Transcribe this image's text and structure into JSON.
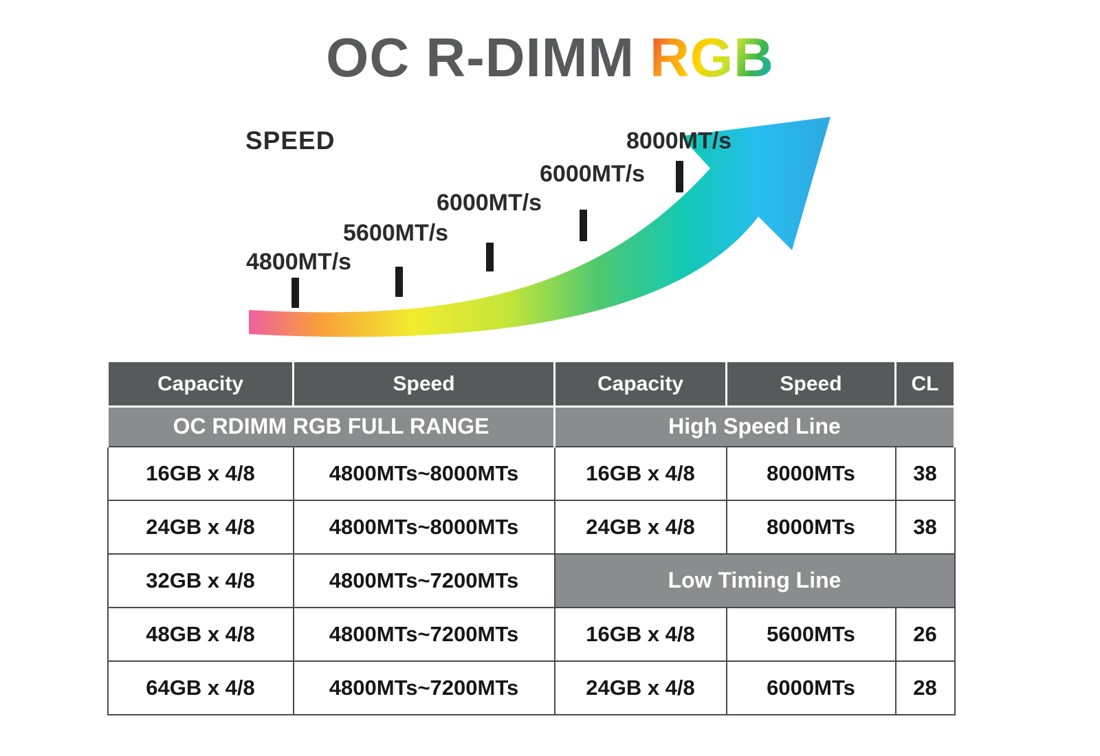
{
  "title": {
    "main": "OC R-DIMM",
    "accent": "RGB"
  },
  "colors": {
    "title_gray": "#58595b",
    "table_header_bg": "#57595b",
    "table_section_bg": "#8a8c8e",
    "text_dark": "#1b1b1d",
    "arrow_head_blue": "#2fb9ec"
  },
  "speed_chart": {
    "axis_label": "SPEED",
    "milestones": [
      {
        "label": "4800MT/s"
      },
      {
        "label": "5600MT/s"
      },
      {
        "label": "6000MT/s"
      },
      {
        "label": "6000MT/s"
      },
      {
        "label": "8000MT/s"
      }
    ]
  },
  "chart_data": {
    "type": "line",
    "title": "SPEED",
    "x_labels": [
      "4800MT/s",
      "5600MT/s",
      "6000MT/s",
      "6000MT/s",
      "8000MT/s"
    ],
    "values": [
      4800,
      5600,
      6000,
      6000,
      8000
    ],
    "style": "upward-curving swoosh arrow with rainbow gradient (pink to yellow to green to cyan), a black tick mark beneath each speed milestone label",
    "legend": "none",
    "grid": false,
    "gradient_stops": [
      {
        "offset": "0%",
        "color": "#f0609e"
      },
      {
        "offset": "12%",
        "color": "#f99e3c"
      },
      {
        "offset": "28%",
        "color": "#f3eb2f"
      },
      {
        "offset": "45%",
        "color": "#c3e53a"
      },
      {
        "offset": "60%",
        "color": "#4ec96f"
      },
      {
        "offset": "75%",
        "color": "#12c9b4"
      },
      {
        "offset": "88%",
        "color": "#27bdee"
      },
      {
        "offset": "100%",
        "color": "#2fa8e1"
      }
    ]
  },
  "table": {
    "headers": [
      "Capacity",
      "Speed",
      "Capacity",
      "Speed",
      "CL"
    ],
    "left_section_title": "OC RDIMM RGB FULL RANGE",
    "right_section_title": "High Speed Line",
    "low_timing_title": "Low Timing Line",
    "left_rows": [
      {
        "capacity": "16GB x 4/8",
        "speed": "4800MTs~8000MTs"
      },
      {
        "capacity": "24GB x 4/8",
        "speed": "4800MTs~8000MTs"
      },
      {
        "capacity": "32GB x 4/8",
        "speed": "4800MTs~7200MTs"
      },
      {
        "capacity": "48GB x 4/8",
        "speed": "4800MTs~7200MTs"
      },
      {
        "capacity": "64GB x 4/8",
        "speed": "4800MTs~7200MTs"
      }
    ],
    "high_speed_rows": [
      {
        "capacity": "16GB x 4/8",
        "speed": "8000MTs",
        "cl": "38"
      },
      {
        "capacity": "24GB x 4/8",
        "speed": "8000MTs",
        "cl": "38"
      }
    ],
    "low_timing_rows": [
      {
        "capacity": "16GB x 4/8",
        "speed": "5600MTs",
        "cl": "26"
      },
      {
        "capacity": "24GB x 4/8",
        "speed": "6000MTs",
        "cl": "28"
      }
    ]
  }
}
